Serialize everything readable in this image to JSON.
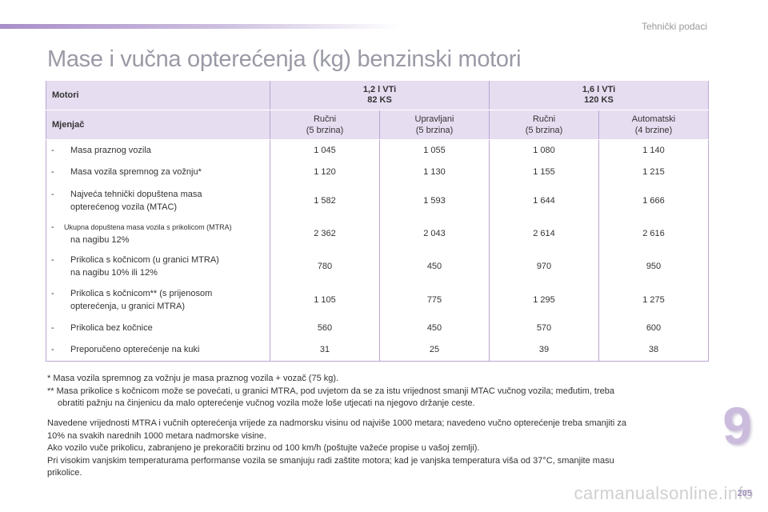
{
  "header": {
    "section": "Tehnički podaci",
    "title": "Mase i vučna opterećenja (kg) benzinski motori"
  },
  "table": {
    "motori_label": "Motori",
    "engines": [
      {
        "line1": "1,2 l VTi",
        "line2": "82 KS"
      },
      {
        "line1": "1,6 l VTi",
        "line2": "120 KS"
      }
    ],
    "mjenjac_label": "Mjenjač",
    "gearboxes": [
      {
        "line1": "Ručni",
        "line2": "(5 brzina)"
      },
      {
        "line1": "Upravljani",
        "line2": "(5 brzina)"
      },
      {
        "line1": "Ručni",
        "line2": "(5 brzina)"
      },
      {
        "line1": "Automatski",
        "line2": "(4 brzine)"
      }
    ],
    "rows": [
      {
        "dash": "-",
        "line1": "Masa praznog vozila",
        "line2": "",
        "values": [
          "1 045",
          "1 055",
          "1 080",
          "1 140"
        ]
      },
      {
        "dash": "-",
        "line1": "Masa vozila spremnog za vožnju*",
        "line2": "",
        "values": [
          "1 120",
          "1 130",
          "1 155",
          "1 215"
        ]
      },
      {
        "dash": "-",
        "line1": "Najveća tehnički dopuštena masa",
        "line2": "opterećenog vozila (MTAC)",
        "values": [
          "1 582",
          "1 593",
          "1 644",
          "1 666"
        ]
      },
      {
        "dash": "-",
        "line1": "Ukupna dopuštena masa vozila s prikolicom (MTRA)",
        "line2": "na nagibu 12%",
        "values": [
          "2 362",
          "2 043",
          "2 614",
          "2 616"
        ]
      },
      {
        "dash": "-",
        "line1": "Prikolica s kočnicom (u granici MTRA)",
        "line2": "na nagibu 10% ili 12%",
        "values": [
          "780",
          "450",
          "970",
          "950"
        ]
      },
      {
        "dash": "-",
        "line1": "Prikolica s kočnicom** (s prijenosom",
        "line2": "opterećenja, u granici MTRA)",
        "values": [
          "1 105",
          "775",
          "1 295",
          "1 275"
        ]
      },
      {
        "dash": "-",
        "line1": "Prikolica bez kočnice",
        "line2": "",
        "values": [
          "560",
          "450",
          "570",
          "600"
        ]
      },
      {
        "dash": "-",
        "line1": "Preporučeno opterećenje na kuki",
        "line2": "",
        "values": [
          "31",
          "25",
          "39",
          "38"
        ]
      }
    ]
  },
  "footnotes": {
    "f1": "* Masa vozila spremnog za vožnju je masa praznog vozila + vozač (75 kg).",
    "f2a": "** Masa prikolice s kočnicom može se povećati, u granici MTRA, pod uvjetom da se za istu vrijednost smanji MTAC vučnog vozila; međutim, treba",
    "f2b": "obratiti pažnju na činjenicu da malo opterećenje vučnog vozila može loše utjecati na njegovo držanje ceste."
  },
  "notes": {
    "p1a": "Navedene vrijednosti MTRA i vučnih opterećenja vrijede za nadmorsku visinu od najviše 1000 metara; navedeno vučno opterećenje treba smanjiti za",
    "p1b": "10% na svakih narednih 1000 metara nadmorske visine.",
    "p2": "Ako vozilo vuče prikolicu, zabranjeno je prekoračiti brzinu od 100 km/h (poštujte važeće propise u vašoj zemlji).",
    "p3a": "Pri visokim vanjskim temperaturama performanse vozila se smanjuju radi zaštite motora; kad je vanjska temperatura viša od 37°C, smanjite masu",
    "p3b": "prikolice."
  },
  "chapter_number": "9",
  "page_number": "205",
  "watermark": "carmanualsonline.info"
}
